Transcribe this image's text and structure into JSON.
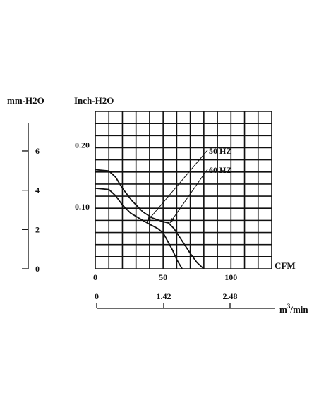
{
  "chart_data": {
    "type": "line",
    "left_axis": {
      "label": "mm-H2O",
      "ticks": [
        0,
        2,
        4,
        6
      ],
      "range": [
        0,
        7.4
      ]
    },
    "y_axis": {
      "label": "Inch-H2O",
      "ticks": [
        0.1,
        0.2
      ],
      "tick_labels": [
        "0.10",
        "0.20"
      ],
      "range": [
        0,
        0.254
      ],
      "grid": true
    },
    "x_axis": {
      "label": "CFM",
      "ticks": [
        0,
        50,
        100
      ],
      "range": [
        0,
        130
      ],
      "grid": true
    },
    "secondary_x_axis": {
      "label": "m3/min",
      "ticks": [
        0,
        1.42,
        2.48
      ],
      "tick_labels": [
        "0",
        "1.42",
        "2.48"
      ]
    },
    "series": [
      {
        "name": "50 HZ",
        "x": [
          0,
          10,
          15,
          20,
          26,
          32,
          40,
          46,
          50,
          53,
          57,
          60,
          64
        ],
        "y": [
          0.13,
          0.128,
          0.118,
          0.103,
          0.09,
          0.082,
          0.072,
          0.065,
          0.058,
          0.046,
          0.03,
          0.015,
          0
        ]
      },
      {
        "name": "60 HZ",
        "x": [
          0,
          10,
          15,
          20,
          27,
          35,
          42,
          50,
          54,
          58,
          64,
          70,
          75,
          80
        ],
        "y": [
          0.16,
          0.158,
          0.148,
          0.13,
          0.11,
          0.092,
          0.082,
          0.076,
          0.074,
          0.065,
          0.045,
          0.025,
          0.01,
          0
        ]
      }
    ],
    "annotations": [
      {
        "text": "50 HZ",
        "points_to_x": 38,
        "points_to_y": 0.076
      },
      {
        "text": "60 HZ",
        "points_to_x": 55,
        "points_to_y": 0.074
      }
    ]
  }
}
